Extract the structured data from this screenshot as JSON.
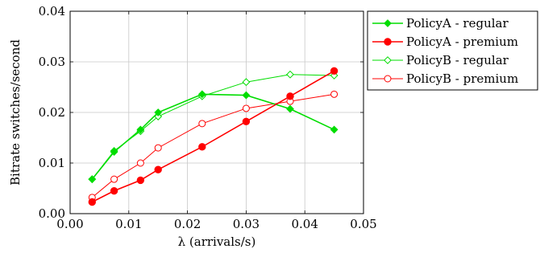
{
  "chart_data": {
    "type": "line",
    "title": "",
    "xlabel": "λ (arrivals/s)",
    "ylabel": "Bitrate switches/second",
    "xlim": [
      0,
      0.05
    ],
    "ylim": [
      0,
      0.04
    ],
    "xticks": [
      "0.00",
      "0.01",
      "0.02",
      "0.03",
      "0.04",
      "0.05"
    ],
    "yticks": [
      "0.00",
      "0.01",
      "0.02",
      "0.03",
      "0.04"
    ],
    "grid": true,
    "legend_position": "outside-right-top",
    "series": [
      {
        "name": "PolicyA - regular",
        "color": "#00dd00",
        "marker": "diamond-filled",
        "x": [
          0.00375,
          0.0075,
          0.012,
          0.015,
          0.0225,
          0.03,
          0.0375,
          0.045
        ],
        "y": [
          0.0068,
          0.0122,
          0.0166,
          0.02,
          0.0236,
          0.0234,
          0.0207,
          0.0166
        ]
      },
      {
        "name": "PolicyA - premium",
        "color": "#ff0000",
        "marker": "circle-filled",
        "x": [
          0.00375,
          0.0075,
          0.012,
          0.015,
          0.0225,
          0.03,
          0.0375,
          0.045
        ],
        "y": [
          0.0023,
          0.0045,
          0.0066,
          0.0087,
          0.0132,
          0.0182,
          0.0232,
          0.0282
        ]
      },
      {
        "name": "PolicyB - regular",
        "color": "#00dd00",
        "marker": "diamond-open",
        "x": [
          0.00375,
          0.0075,
          0.012,
          0.015,
          0.0225,
          0.03,
          0.0375,
          0.045
        ],
        "y": [
          0.0068,
          0.0124,
          0.0163,
          0.0192,
          0.0232,
          0.026,
          0.0275,
          0.0273
        ]
      },
      {
        "name": "PolicyB - premium",
        "color": "#ff0000",
        "marker": "circle-open",
        "x": [
          0.00375,
          0.0075,
          0.012,
          0.015,
          0.0225,
          0.03,
          0.0375,
          0.045
        ],
        "y": [
          0.0032,
          0.0068,
          0.01,
          0.013,
          0.0178,
          0.0208,
          0.0222,
          0.0236
        ]
      }
    ]
  }
}
